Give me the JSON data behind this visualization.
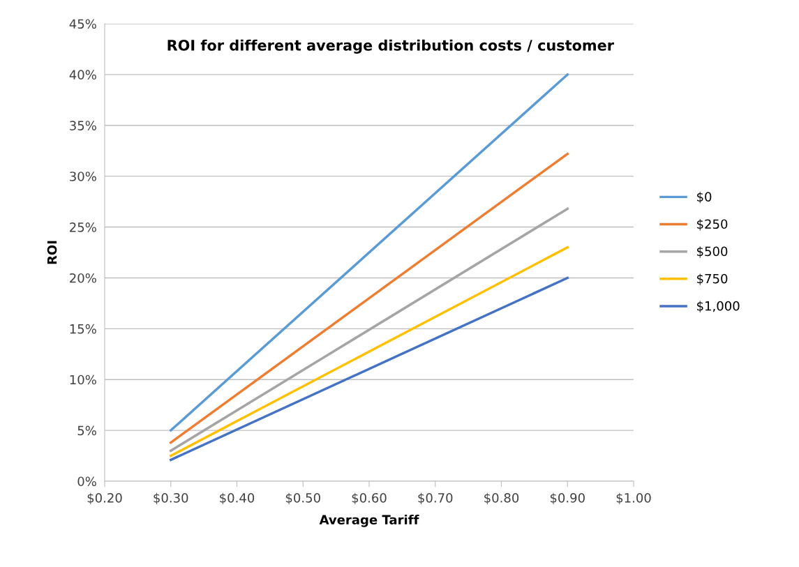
{
  "chart_data": {
    "type": "line",
    "title": "ROI for different average distribution costs / customer",
    "xlabel": "Average Tariff",
    "ylabel": "ROI",
    "x": [
      0.3,
      0.9
    ],
    "series": [
      {
        "name": "$0",
        "color": "#5b9bd5",
        "values": [
          5.0,
          40.0
        ]
      },
      {
        "name": "$250",
        "color": "#ed7d31",
        "values": [
          3.8,
          32.2
        ]
      },
      {
        "name": "$500",
        "color": "#a5a5a5",
        "values": [
          3.0,
          26.8
        ]
      },
      {
        "name": "$750",
        "color": "#ffc000",
        "values": [
          2.5,
          23.0
        ]
      },
      {
        "name": "$1,000",
        "color": "#4472c4",
        "values": [
          2.1,
          20.0
        ]
      }
    ],
    "xlim": [
      0.2,
      1.0
    ],
    "xticks": [
      {
        "value": 0.2,
        "label": "$0.20"
      },
      {
        "value": 0.3,
        "label": "$0.30"
      },
      {
        "value": 0.4,
        "label": "$0.40"
      },
      {
        "value": 0.5,
        "label": "$0.50"
      },
      {
        "value": 0.6,
        "label": "$0.60"
      },
      {
        "value": 0.7,
        "label": "$0.70"
      },
      {
        "value": 0.8,
        "label": "$0.80"
      },
      {
        "value": 0.9,
        "label": "$0.90"
      },
      {
        "value": 1.0,
        "label": "$1.00"
      }
    ],
    "ylim": [
      0,
      45
    ],
    "yticks": [
      {
        "value": 0,
        "label": "0%"
      },
      {
        "value": 5,
        "label": "5%"
      },
      {
        "value": 10,
        "label": "10%"
      },
      {
        "value": 15,
        "label": "15%"
      },
      {
        "value": 20,
        "label": "20%"
      },
      {
        "value": 25,
        "label": "25%"
      },
      {
        "value": 30,
        "label": "30%"
      },
      {
        "value": 35,
        "label": "35%"
      },
      {
        "value": 40,
        "label": "40%"
      },
      {
        "value": 45,
        "label": "45%"
      }
    ],
    "grid": "y",
    "legend": "right",
    "marker": "none",
    "line_style": "solid"
  }
}
